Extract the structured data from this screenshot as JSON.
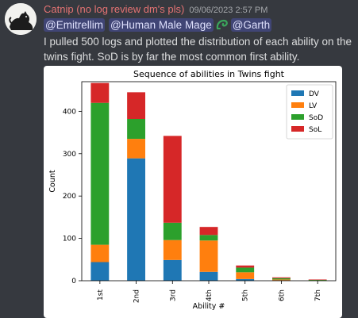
{
  "message": {
    "username": "Catnip (no log review dm's pls)",
    "timestamp": "09/06/2023 2:57 PM",
    "mentions": [
      "@Emitrellim",
      "@Human Male Mage",
      "@Garth"
    ],
    "text": "I pulled 500 logs and plotted the distribution of each ability on the twins fight. SoD is by far the most common first ability.",
    "colors": {
      "username": "#e57373",
      "mention_bg": "#4a4f86",
      "background": "#36393f"
    }
  },
  "chart_data": {
    "type": "bar",
    "stacked": true,
    "title": "Sequence of abilities in Twins fight",
    "xlabel": "Ability #",
    "ylabel": "Count",
    "categories": [
      "1st",
      "2nd",
      "3rd",
      "4th",
      "5th",
      "6th",
      "7th"
    ],
    "ylim": [
      0,
      470
    ],
    "yticks": [
      0,
      100,
      200,
      300,
      400
    ],
    "legend": "top-right",
    "series": [
      {
        "name": "DV",
        "color": "#1f77b4",
        "values": [
          44,
          289,
          49,
          21,
          4,
          1,
          0
        ]
      },
      {
        "name": "LV",
        "color": "#ff7f0e",
        "values": [
          41,
          46,
          47,
          74,
          16,
          2,
          1
        ]
      },
      {
        "name": "SoD",
        "color": "#2ca02c",
        "values": [
          335,
          47,
          41,
          13,
          11,
          3,
          1
        ]
      },
      {
        "name": "SoL",
        "color": "#d62728",
        "values": [
          47,
          63,
          205,
          19,
          5,
          2,
          1
        ]
      }
    ]
  }
}
